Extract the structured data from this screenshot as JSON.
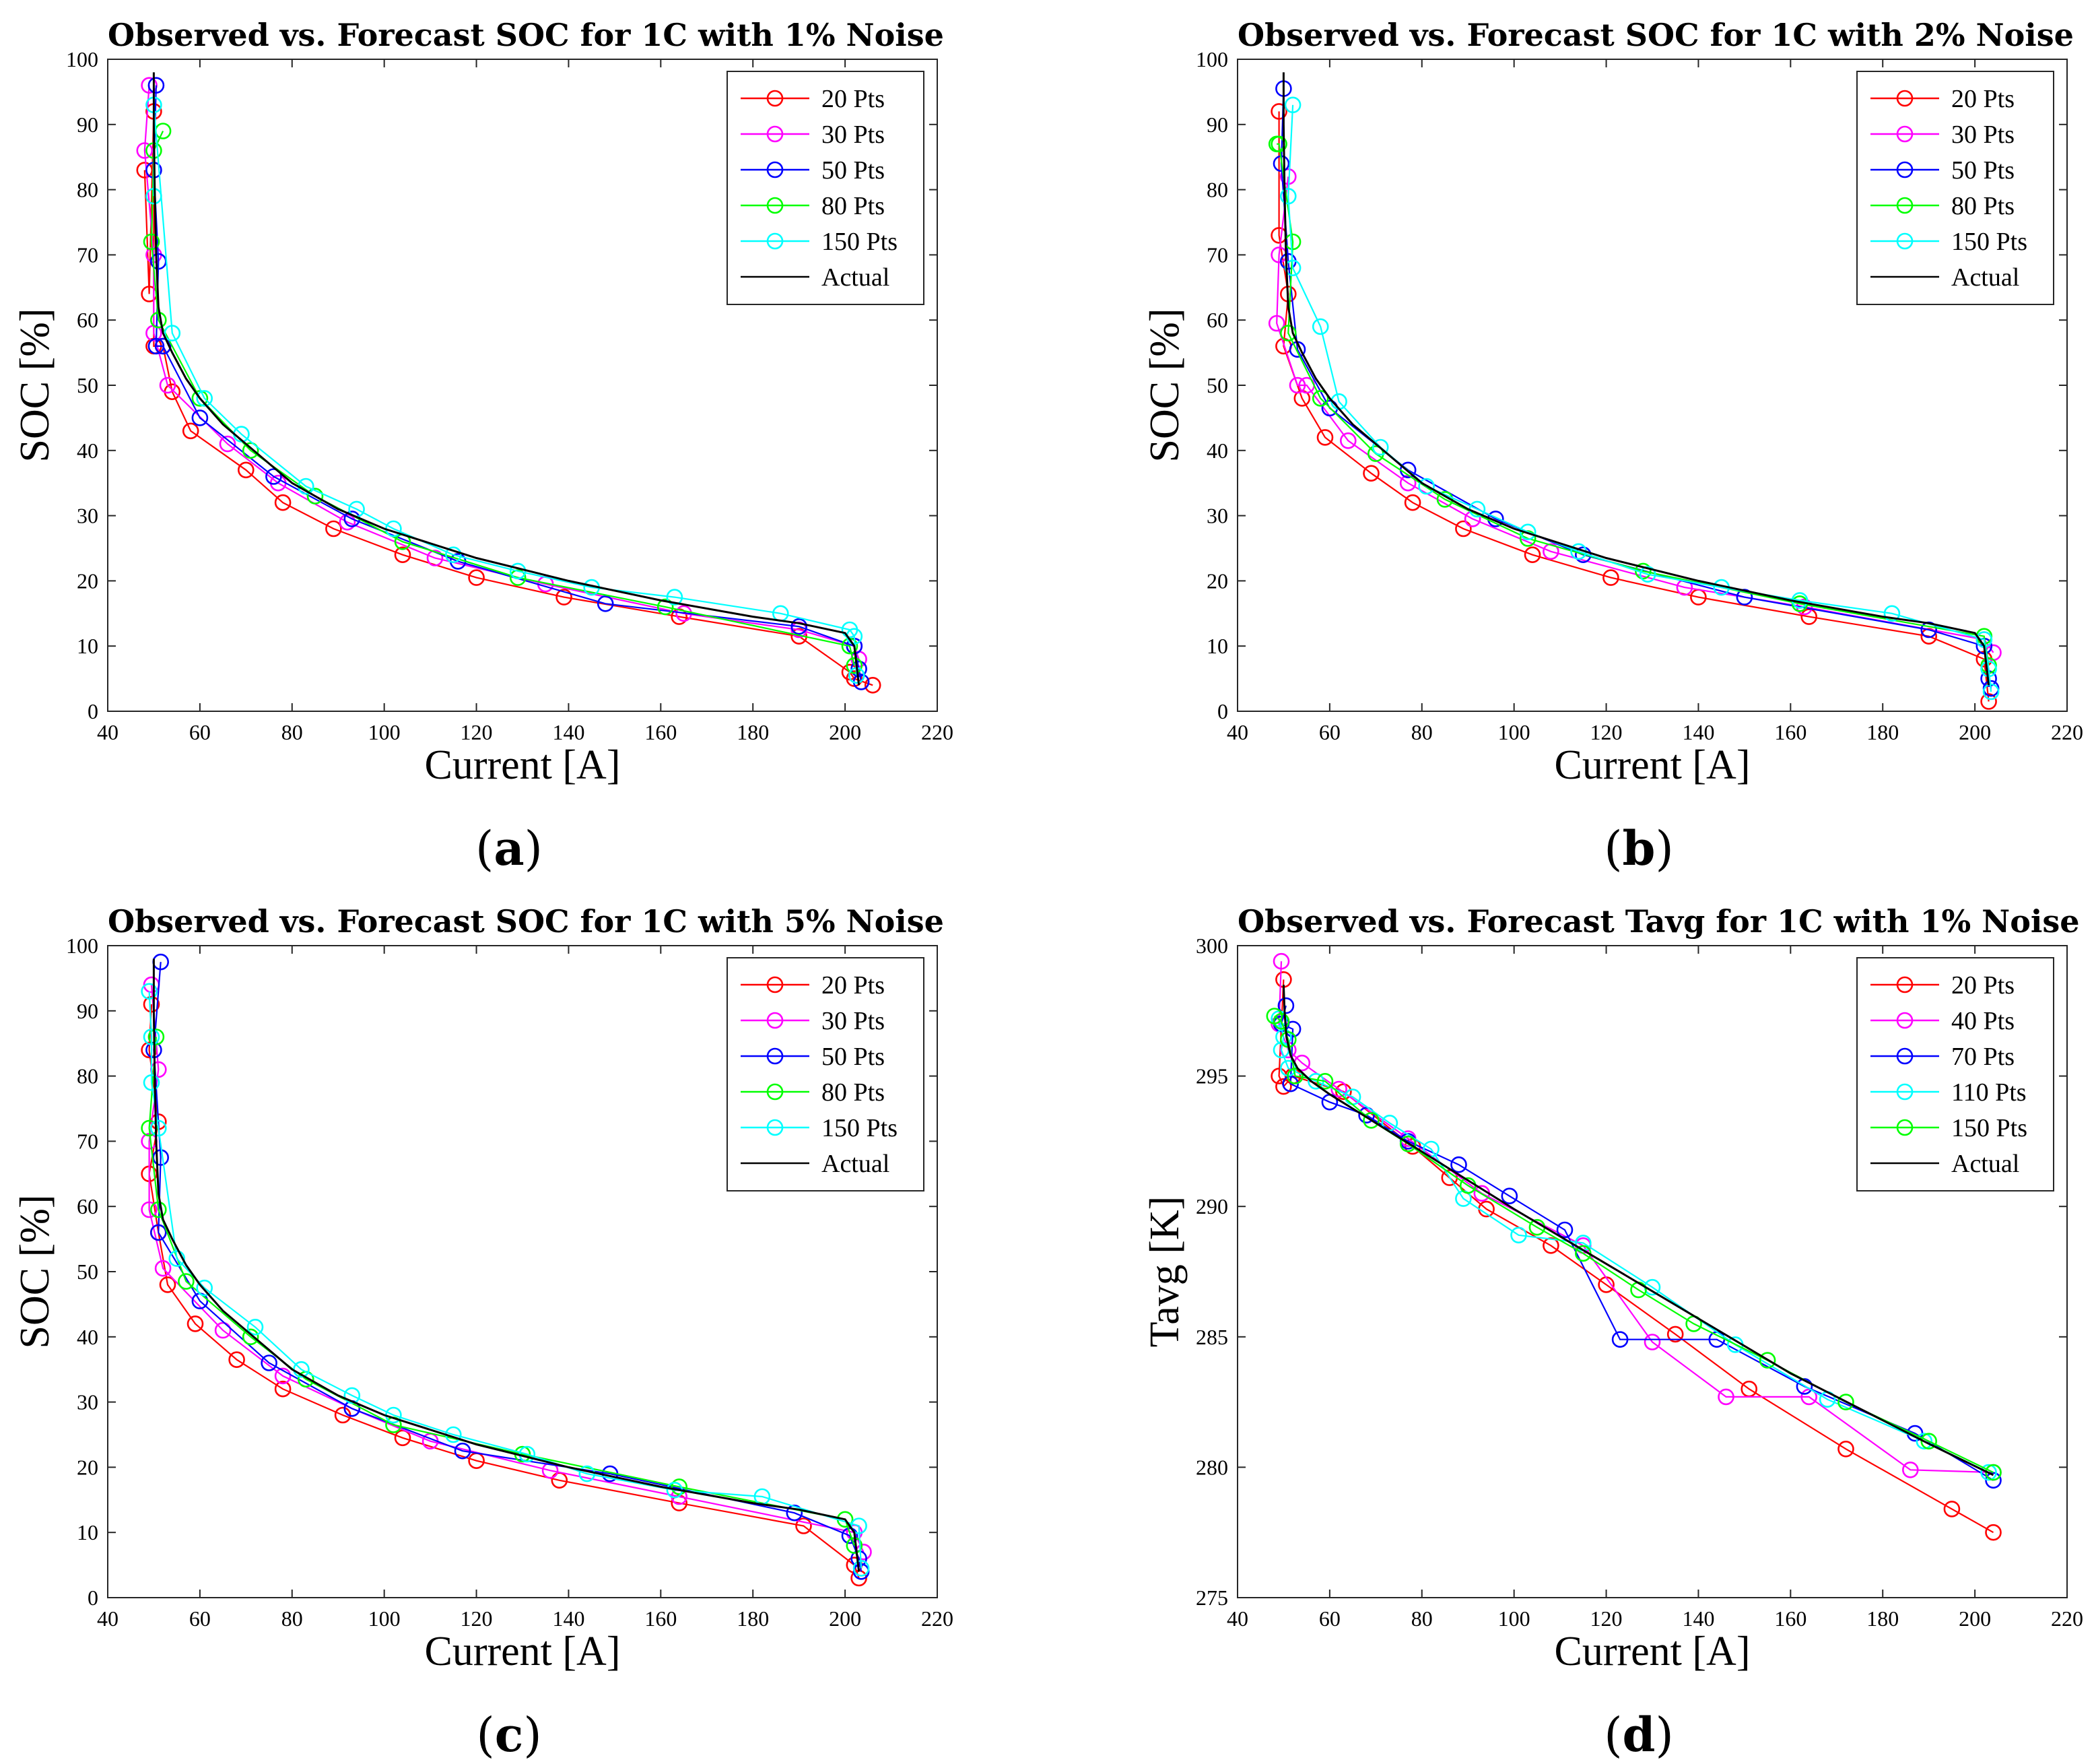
{
  "chart_data": [
    {
      "type": "line",
      "panel": "(a)",
      "panel_letter": "a",
      "title": "Observed vs. Forecast SOC for 1C with 1% Noise",
      "xlabel": "Current [A]",
      "ylabel": "SOC [%]",
      "xlim": [
        40,
        220
      ],
      "ylim": [
        0,
        100
      ],
      "xticks": [
        40,
        60,
        80,
        100,
        120,
        140,
        160,
        180,
        200,
        220
      ],
      "yticks": [
        0,
        10,
        20,
        30,
        40,
        50,
        60,
        70,
        80,
        90,
        100
      ],
      "legend_position": "top-right",
      "series": [
        {
          "name": "20 Pts",
          "color": "#ff0000",
          "marker": "circle",
          "x": [
            48,
            49,
            50,
            50,
            52,
            54,
            58,
            70,
            78,
            89,
            104,
            120,
            139,
            164,
            190,
            201,
            202,
            206
          ],
          "y": [
            83,
            64,
            92,
            56,
            56,
            49,
            43,
            37,
            32,
            28,
            24,
            20.5,
            17.5,
            14.5,
            11.5,
            6,
            5,
            4
          ]
        },
        {
          "name": "30 Pts",
          "color": "#ff00ff",
          "marker": "circle",
          "x": [
            49,
            48,
            50,
            50,
            53,
            66,
            77,
            92,
            111,
            135,
            165,
            190,
            202,
            203
          ],
          "y": [
            96,
            86,
            70,
            58,
            50,
            41,
            35,
            29,
            23.5,
            19.5,
            15,
            12.5,
            10,
            8
          ]
        },
        {
          "name": "50 Pts",
          "color": "#0000ff",
          "marker": "circle",
          "x": [
            50.5,
            50,
            51,
            50.5,
            52,
            60,
            76,
            93,
            116,
            148,
            190,
            202,
            203,
            203.5
          ],
          "y": [
            96,
            83,
            69,
            56,
            56,
            45,
            36,
            29.5,
            23,
            16.5,
            13,
            10,
            6.5,
            4.5
          ]
        },
        {
          "name": "80 Pts",
          "color": "#00ff00",
          "marker": "circle",
          "x": [
            52,
            50,
            49.5,
            51,
            60,
            71,
            85,
            104,
            129,
            161,
            201,
            202
          ],
          "y": [
            89,
            86,
            72,
            60,
            48,
            40,
            33,
            26,
            20.5,
            16,
            10,
            7
          ]
        },
        {
          "name": "150 Pts",
          "color": "#00ffff",
          "marker": "circle",
          "x": [
            50,
            50,
            54,
            61,
            69,
            83,
            94,
            102,
            115,
            129,
            145,
            163,
            186,
            201,
            202,
            202.5
          ],
          "y": [
            79,
            93,
            58,
            48,
            42.5,
            34.5,
            31,
            28,
            24,
            21.5,
            19,
            17.5,
            15,
            12.5,
            11.5,
            5.5
          ]
        },
        {
          "name": "Actual",
          "color": "#000000",
          "marker": "none",
          "x": [
            50,
            50,
            50.2,
            50.5,
            51,
            52,
            54,
            57,
            60,
            65,
            70,
            80,
            90,
            100,
            120,
            140,
            160,
            180,
            190,
            200,
            202,
            202.5,
            203
          ],
          "y": [
            98,
            90,
            80,
            70,
            62,
            58,
            55,
            51,
            48,
            44,
            41,
            35,
            31,
            28,
            23.5,
            20,
            17,
            14.5,
            13.5,
            12,
            10,
            7,
            4
          ]
        }
      ]
    },
    {
      "type": "line",
      "panel": "(b)",
      "panel_letter": "b",
      "title": "Observed vs. Forecast SOC for 1C with 2% Noise",
      "xlabel": "Current [A]",
      "ylabel": "SOC [%]",
      "xlim": [
        40,
        220
      ],
      "ylim": [
        0,
        100
      ],
      "xticks": [
        40,
        60,
        80,
        100,
        120,
        140,
        160,
        180,
        200,
        220
      ],
      "yticks": [
        0,
        10,
        20,
        30,
        40,
        50,
        60,
        70,
        80,
        90,
        100
      ],
      "legend_position": "top-right",
      "series": [
        {
          "name": "20 Pts",
          "color": "#ff0000",
          "marker": "circle",
          "x": [
            49,
            49,
            51,
            50,
            54,
            59,
            69,
            78,
            89,
            104,
            121,
            140,
            164,
            190,
            202,
            203
          ],
          "y": [
            92,
            73,
            64,
            56,
            48,
            42,
            36.5,
            32,
            28,
            24,
            20.5,
            17.5,
            14.5,
            11.5,
            8,
            1.5
          ]
        },
        {
          "name": "30 Pts",
          "color": "#ff00ff",
          "marker": "circle",
          "x": [
            51,
            49,
            48.5,
            53,
            55,
            64,
            77,
            91,
            108,
            137,
            163,
            202,
            204
          ],
          "y": [
            82,
            70,
            59.5,
            50,
            50,
            41.5,
            35,
            29.5,
            24.5,
            19,
            16,
            11,
            9
          ]
        },
        {
          "name": "50 Pts",
          "color": "#0000ff",
          "marker": "circle",
          "x": [
            50,
            49.5,
            51,
            53,
            60,
            77,
            96,
            115,
            150,
            190,
            202,
            203,
            203.5
          ],
          "y": [
            95.5,
            84,
            69,
            55.5,
            46.5,
            37,
            29.5,
            24,
            17.5,
            12.5,
            10,
            5,
            3.5
          ]
        },
        {
          "name": "80 Pts",
          "color": "#00ff00",
          "marker": "circle",
          "x": [
            48.5,
            49,
            52,
            51,
            58,
            70,
            85,
            103,
            128,
            162,
            202,
            203
          ],
          "y": [
            87,
            87,
            72,
            58,
            48,
            39.5,
            32.5,
            26.5,
            21.5,
            16.5,
            11.5,
            7
          ]
        },
        {
          "name": "150 Pts",
          "color": "#00ffff",
          "marker": "circle",
          "x": [
            52,
            51,
            52,
            58,
            62,
            71,
            81,
            92,
            103,
            114,
            129,
            145,
            162,
            182,
            202,
            203,
            203.5
          ],
          "y": [
            93,
            79,
            68,
            59,
            47.5,
            40.5,
            34.5,
            31,
            27.5,
            24.5,
            21,
            19,
            17,
            15,
            11,
            6.5,
            3
          ]
        },
        {
          "name": "Actual",
          "color": "#000000",
          "marker": "none",
          "x": [
            50,
            50,
            50.2,
            50.5,
            51,
            52,
            54,
            57,
            60,
            65,
            70,
            80,
            90,
            100,
            120,
            140,
            160,
            180,
            190,
            200,
            202,
            202.5,
            203
          ],
          "y": [
            98,
            90,
            80,
            70,
            62,
            58,
            55,
            51,
            48,
            44,
            41,
            35,
            31,
            28,
            23.5,
            20,
            17,
            14.5,
            13.5,
            12,
            10,
            7,
            4
          ]
        }
      ]
    },
    {
      "type": "line",
      "panel": "(c)",
      "panel_letter": "c",
      "title": "Observed vs. Forecast SOC for 1C with 5% Noise",
      "xlabel": "Current [A]",
      "ylabel": "SOC [%]",
      "xlim": [
        40,
        220
      ],
      "ylim": [
        0,
        100
      ],
      "xticks": [
        40,
        60,
        80,
        100,
        120,
        140,
        160,
        180,
        200,
        220
      ],
      "yticks": [
        0,
        10,
        20,
        30,
        40,
        50,
        60,
        70,
        80,
        90,
        100
      ],
      "legend_position": "top-right",
      "series": [
        {
          "name": "20 Pts",
          "color": "#ff0000",
          "marker": "circle",
          "x": [
            49.5,
            49,
            51,
            49,
            51,
            53,
            59,
            68,
            78,
            91,
            104,
            120,
            138,
            164,
            191,
            202,
            203
          ],
          "y": [
            91,
            84,
            73,
            65,
            56,
            48,
            42,
            36.5,
            32,
            28,
            24.5,
            21,
            18,
            14.5,
            11,
            5,
            3
          ]
        },
        {
          "name": "30 Pts",
          "color": "#ff00ff",
          "marker": "circle",
          "x": [
            49.5,
            51,
            49,
            49,
            52,
            65,
            78,
            93,
            110,
            136,
            164,
            202,
            204
          ],
          "y": [
            94,
            81,
            70,
            59.5,
            50.5,
            41,
            34,
            29,
            24,
            19.5,
            15.5,
            10,
            7
          ]
        },
        {
          "name": "50 Pts",
          "color": "#0000ff",
          "marker": "circle",
          "x": [
            51.5,
            50,
            51.5,
            51,
            60,
            75,
            93,
            117,
            149,
            189,
            201,
            203,
            203.5
          ],
          "y": [
            97.5,
            84,
            67.5,
            56,
            45.5,
            36,
            29,
            22.5,
            19,
            13,
            9.5,
            6,
            4
          ]
        },
        {
          "name": "80 Pts",
          "color": "#00ff00",
          "marker": "circle",
          "x": [
            50.5,
            49,
            51,
            57,
            71,
            83,
            102,
            130,
            164,
            200,
            202
          ],
          "y": [
            86,
            72,
            59.5,
            48.5,
            40,
            33.5,
            26.5,
            22,
            17,
            12,
            8
          ]
        },
        {
          "name": "150 Pts",
          "color": "#00ffff",
          "marker": "circle",
          "x": [
            49,
            49.5,
            49.5,
            51,
            55,
            61,
            72,
            82,
            93,
            102,
            115,
            131,
            144,
            163,
            182,
            203,
            203.5
          ],
          "y": [
            93,
            86,
            79,
            72,
            52,
            47.5,
            41.5,
            35,
            31,
            28,
            25,
            22,
            19,
            16.5,
            15.5,
            11,
            4.5
          ]
        },
        {
          "name": "Actual",
          "color": "#000000",
          "marker": "none",
          "x": [
            50,
            50,
            50.2,
            50.5,
            51,
            52,
            54,
            57,
            60,
            65,
            70,
            80,
            90,
            100,
            120,
            140,
            160,
            180,
            190,
            200,
            202,
            202.5,
            203
          ],
          "y": [
            98,
            90,
            80,
            70,
            62,
            58,
            55,
            51,
            48,
            44,
            41,
            35,
            31,
            28,
            23.5,
            20,
            17,
            14.5,
            13.5,
            12,
            10,
            7,
            4
          ]
        }
      ]
    },
    {
      "type": "line",
      "panel": "(d)",
      "panel_letter": "d",
      "title": "Observed vs. Forecast Tavg for 1C with 1% Noise",
      "xlabel": "Current [A]",
      "ylabel": "Tavg [K]",
      "xlim": [
        40,
        220
      ],
      "ylim": [
        275,
        300
      ],
      "xticks": [
        40,
        60,
        80,
        100,
        120,
        140,
        160,
        180,
        200,
        220
      ],
      "yticks": [
        275,
        280,
        285,
        290,
        295,
        300
      ],
      "legend_position": "top-right",
      "series": [
        {
          "name": "20 Pts",
          "color": "#ff0000",
          "marker": "circle",
          "x": [
            50,
            49,
            50,
            52,
            63,
            78,
            86,
            94,
            108,
            120,
            135,
            151,
            172,
            195,
            204
          ],
          "y": [
            298.7,
            295,
            294.6,
            295,
            294.4,
            292.3,
            291.1,
            289.9,
            288.5,
            287,
            285.1,
            283,
            280.7,
            278.4,
            277.5
          ]
        },
        {
          "name": "40 Pts",
          "color": "#ff00ff",
          "marker": "circle",
          "x": [
            49.5,
            49,
            51,
            54,
            62,
            77,
            93,
            115,
            130,
            146,
            164,
            186,
            204
          ],
          "y": [
            299.4,
            297,
            296,
            295.5,
            294.5,
            292.6,
            290.5,
            288.5,
            284.8,
            282.7,
            282.7,
            279.9,
            279.8
          ]
        },
        {
          "name": "70 Pts",
          "color": "#0000ff",
          "marker": "circle",
          "x": [
            50.5,
            49.5,
            52,
            51.5,
            60,
            68,
            77,
            88,
            99,
            111,
            123,
            144,
            163,
            187,
            204
          ],
          "y": [
            297.7,
            297,
            296.8,
            294.7,
            294,
            293.5,
            292.5,
            291.6,
            290.4,
            289.1,
            284.9,
            284.9,
            283.1,
            281.3,
            279.5
          ]
        },
        {
          "name": "110 Pts",
          "color": "#00ffff",
          "marker": "circle",
          "x": [
            49,
            50,
            49.5,
            51,
            57,
            65,
            73,
            82,
            89,
            101,
            115,
            130,
            148,
            168,
            189,
            203
          ],
          "y": [
            297.2,
            296.5,
            296,
            295.3,
            294.8,
            294.2,
            293.2,
            292.2,
            290.3,
            288.9,
            288.6,
            286.9,
            284.7,
            282.6,
            281,
            279.8
          ]
        },
        {
          "name": "150 Pts",
          "color": "#00ff00",
          "marker": "circle",
          "x": [
            48,
            49.5,
            51,
            52.5,
            59,
            69,
            77,
            90,
            105,
            115,
            127,
            139,
            155,
            172,
            190,
            204
          ],
          "y": [
            297.3,
            297.1,
            296.4,
            295,
            294.8,
            293.3,
            292.4,
            290.8,
            289.2,
            288.2,
            286.8,
            285.5,
            284.1,
            282.5,
            281,
            279.8
          ]
        },
        {
          "name": "Actual",
          "color": "#000000",
          "marker": "none",
          "x": [
            50,
            50.2,
            50.6,
            51.5,
            53,
            56,
            60,
            70,
            80,
            90,
            100,
            120,
            140,
            160,
            180,
            190,
            204
          ],
          "y": [
            298.5,
            297.5,
            296.5,
            295.8,
            295.3,
            294.8,
            294.3,
            293.2,
            292.1,
            291,
            289.9,
            287.8,
            285.7,
            283.6,
            281.8,
            280.9,
            279.7
          ]
        }
      ]
    }
  ]
}
